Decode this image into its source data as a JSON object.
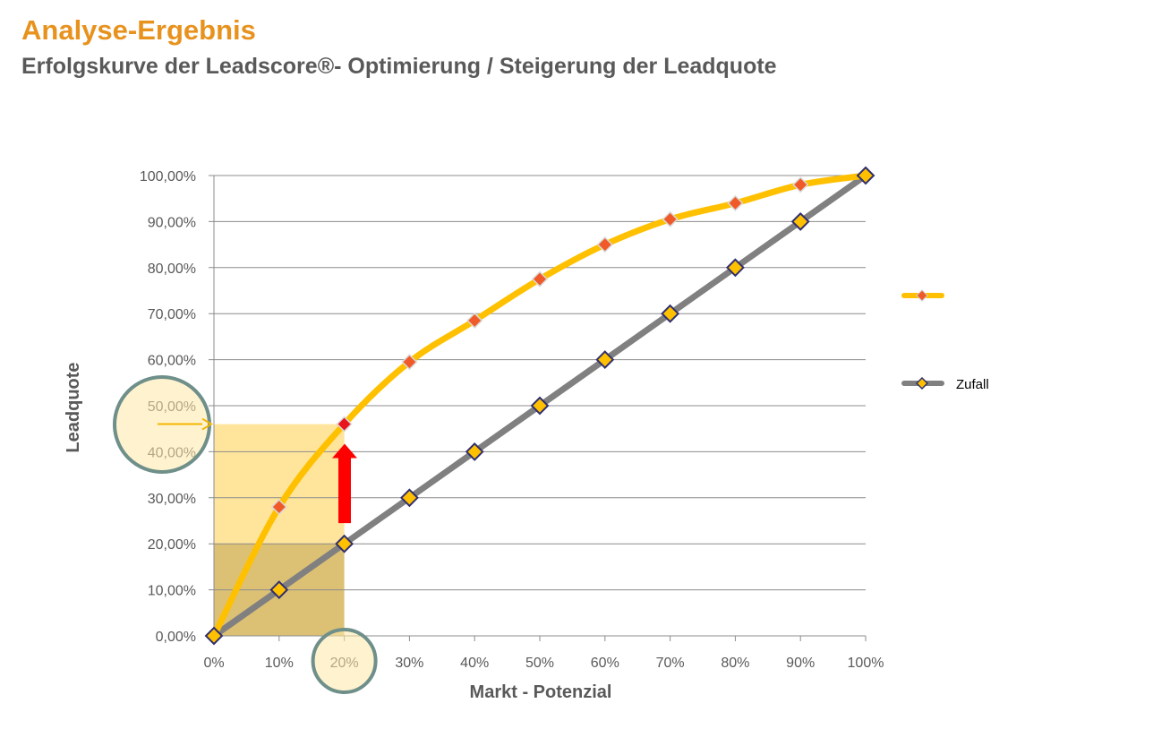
{
  "header": {
    "title": "Analyse-Ergebnis",
    "subtitle": "Erfolgskurve der Leadscore®- Optimierung / Steigerung der Leadquote"
  },
  "colors": {
    "title": "#E8921E",
    "text": "#595959",
    "optimized_line": "#FFC000",
    "optimized_marker": "#F05A28",
    "random_line": "#808080",
    "random_marker": "#FFC000",
    "marker_border": "#2F2F6F",
    "highlight_arrow": "#FF0000"
  },
  "chart_data": {
    "type": "line",
    "xlabel": "Markt - Potenzial",
    "ylabel": "Leadquote",
    "x": [
      0,
      10,
      20,
      30,
      40,
      50,
      60,
      70,
      80,
      90,
      100
    ],
    "x_tick_labels": [
      "0%",
      "10%",
      "20%",
      "30%",
      "40%",
      "50%",
      "60%",
      "70%",
      "80%",
      "90%",
      "100%"
    ],
    "y_tick_values": [
      0,
      10,
      20,
      30,
      40,
      50,
      60,
      70,
      80,
      90,
      100
    ],
    "y_tick_labels": [
      "0,00%",
      "10,00%",
      "20,00%",
      "30,00%",
      "40,00%",
      "50,00%",
      "60,00%",
      "70,00%",
      "80,00%",
      "90,00%",
      "100,00%"
    ],
    "xlim": [
      0,
      100
    ],
    "ylim": [
      0,
      100
    ],
    "grid": true,
    "legend_position": "right",
    "series": [
      {
        "name": "",
        "values": [
          0,
          28,
          46,
          59.5,
          68.5,
          77.5,
          85,
          90.5,
          94,
          98,
          100
        ]
      },
      {
        "name": "Zufall",
        "values": [
          0,
          10,
          20,
          30,
          40,
          50,
          60,
          70,
          80,
          90,
          100
        ]
      }
    ],
    "annotations": {
      "highlight_x": 20,
      "highlight_optimized_value": 46,
      "highlight_random_value": 20
    }
  }
}
